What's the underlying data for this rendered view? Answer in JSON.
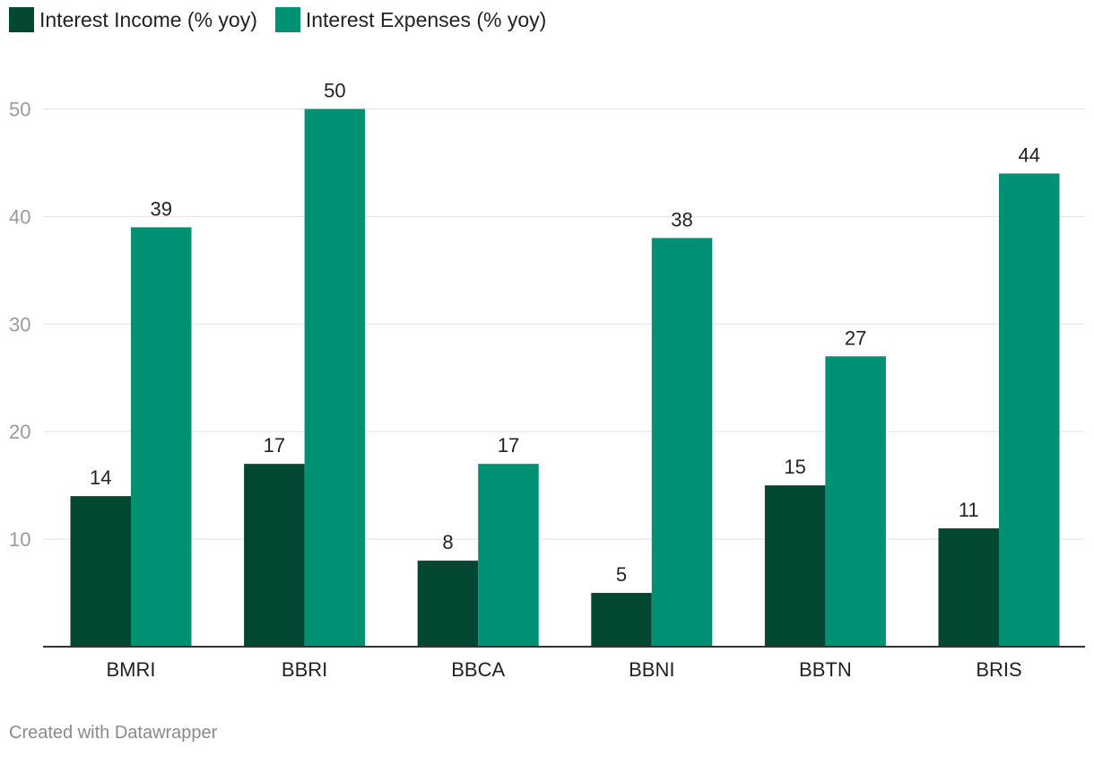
{
  "chart_data": {
    "type": "bar",
    "categories": [
      "BMRI",
      "BBRI",
      "BBCA",
      "BBNI",
      "BBTN",
      "BRIS"
    ],
    "series": [
      {
        "name": "Interest Income (% yoy)",
        "color": "#024731",
        "values": [
          14,
          17,
          8,
          5,
          15,
          11
        ]
      },
      {
        "name": "Interest Expenses (% yoy)",
        "color": "#009175",
        "values": [
          39,
          50,
          17,
          38,
          27,
          44
        ]
      }
    ],
    "y_ticks": [
      10,
      20,
      30,
      40,
      50
    ],
    "ylim": [
      0,
      50
    ],
    "grid": true,
    "legend_position": "top-left",
    "data_labels": true
  },
  "footer": "Created with Datawrapper"
}
